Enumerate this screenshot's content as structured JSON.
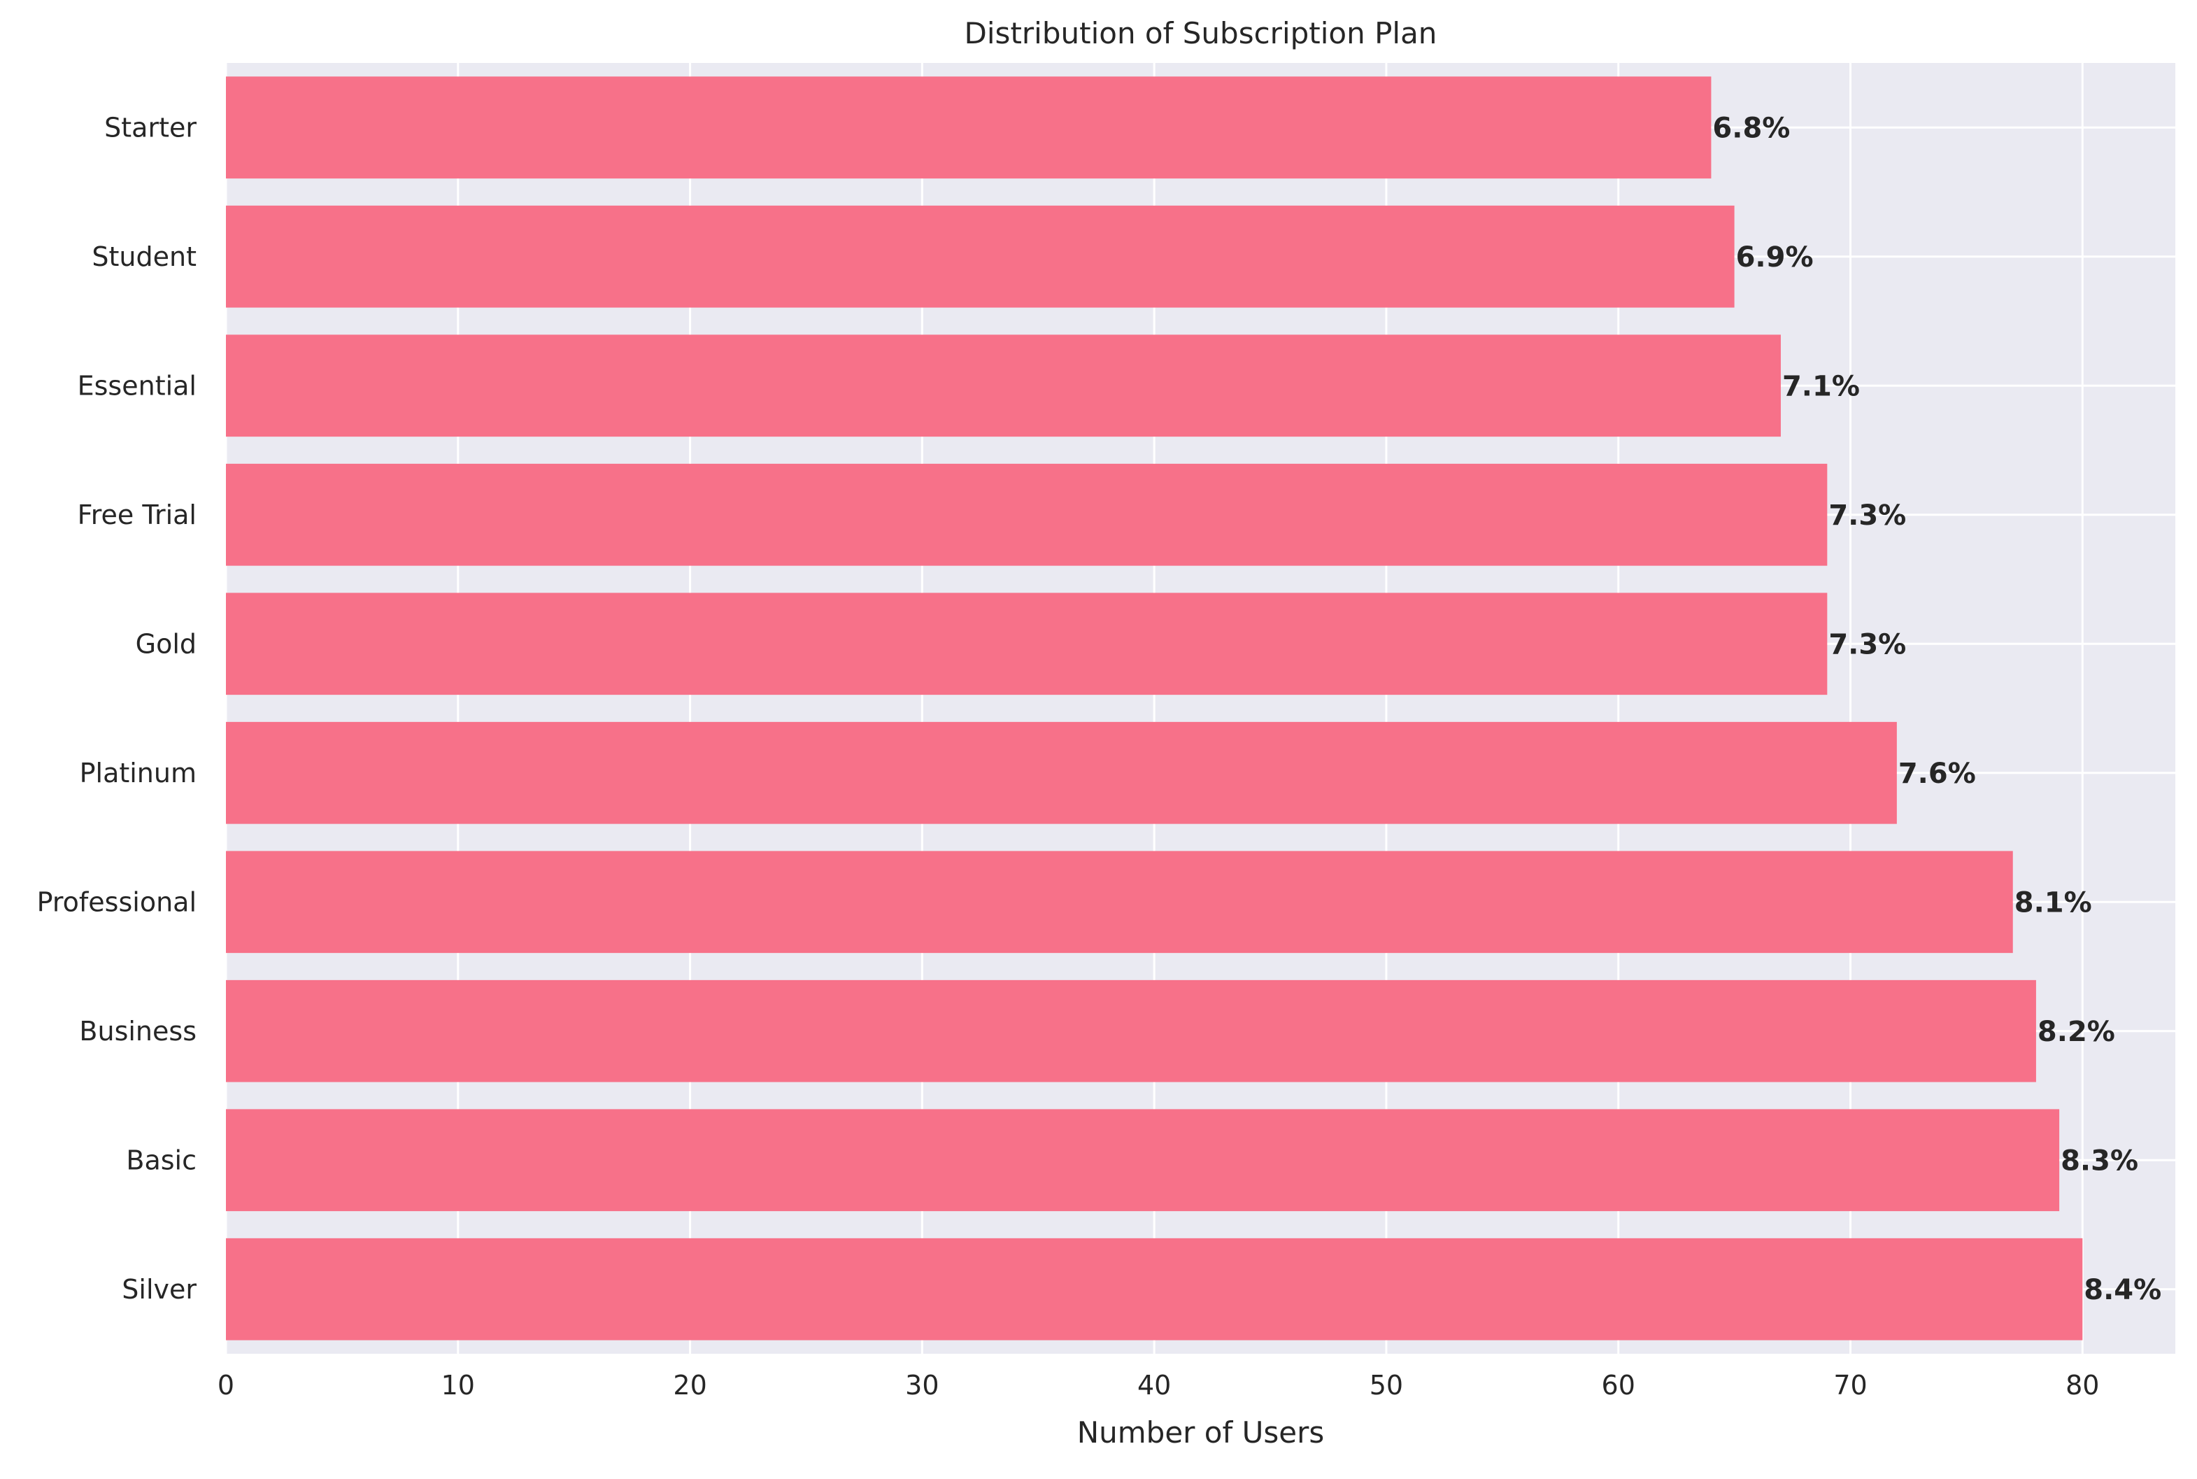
{
  "chart_data": {
    "type": "bar",
    "orientation": "horizontal",
    "title": "Distribution of Subscription Plan",
    "xlabel": "Number of Users",
    "ylabel": "",
    "xlim": [
      0,
      84
    ],
    "xticks": [
      0,
      10,
      20,
      30,
      40,
      50,
      60,
      70,
      80
    ],
    "categories": [
      "Silver",
      "Basic",
      "Business",
      "Professional",
      "Platinum",
      "Gold",
      "Free Trial",
      "Essential",
      "Student",
      "Starter"
    ],
    "values": [
      80,
      79,
      78,
      77,
      72,
      69,
      69,
      67,
      65,
      64
    ],
    "percent_labels": [
      "8.4%",
      "8.3%",
      "8.2%",
      "8.1%",
      "7.6%",
      "7.3%",
      "7.3%",
      "7.1%",
      "6.9%",
      "6.8%"
    ],
    "grid": true,
    "legend": "none",
    "colors": {
      "bar": "#f77189",
      "plot_background": "#eaeaf2",
      "grid": "#ffffff",
      "text": "#262626"
    }
  }
}
